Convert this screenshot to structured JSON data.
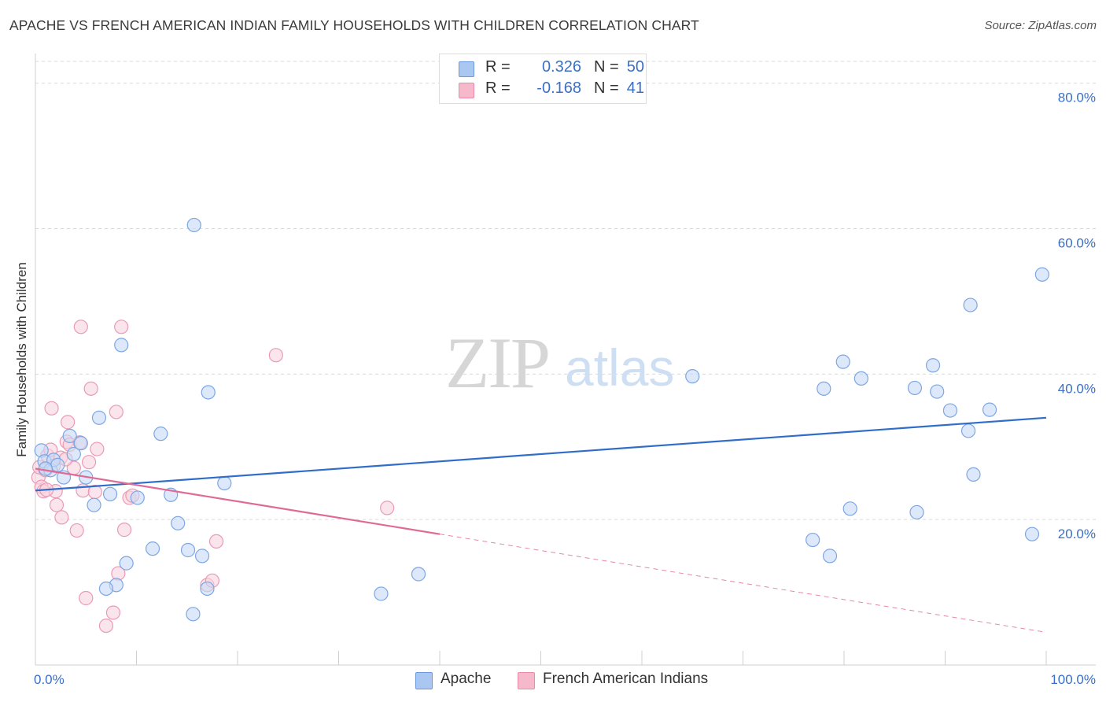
{
  "header": {
    "title": "APACHE VS FRENCH AMERICAN INDIAN FAMILY HOUSEHOLDS WITH CHILDREN CORRELATION CHART",
    "source": "Source: ZipAtlas.com"
  },
  "watermark": {
    "zip": "ZIP",
    "atlas": "atlas"
  },
  "legend": {
    "r_label": "R =",
    "n_label": "N =",
    "series": [
      {
        "name": "Apache",
        "r": "0.326",
        "n": "50",
        "fill": "#a9c7f0",
        "stroke": "#6b98dd"
      },
      {
        "name": "French American Indians",
        "r": "-0.168",
        "n": "41",
        "fill": "#f6b9cc",
        "stroke": "#e98aa8"
      }
    ]
  },
  "colors": {
    "apache_point_fill": "#c7dbf6",
    "apache_point_stroke": "#7da6e3",
    "apache_line": "#2f6dc9",
    "french_point_fill": "#f9d3df",
    "french_point_stroke": "#eb9ab5",
    "french_line": "#e06a96",
    "axis_label": "#3a6fc6",
    "grid": "#d9d9d9"
  },
  "chart_data": {
    "type": "scatter",
    "title": "APACHE VS FRENCH AMERICAN INDIAN FAMILY HOUSEHOLDS WITH CHILDREN CORRELATION CHART",
    "xlabel": "",
    "ylabel": "Family Households with Children",
    "xlim": [
      0,
      100
    ],
    "ylim": [
      0,
      83
    ],
    "x_tick_labels": [
      {
        "value": 0,
        "label": "0.0%"
      },
      {
        "value": 100,
        "label": "100.0%"
      }
    ],
    "x_minor_ticks": [
      10,
      20,
      30,
      40,
      50,
      60,
      70,
      80,
      90,
      100
    ],
    "y_ticks": [
      {
        "value": 20,
        "label": "20.0%"
      },
      {
        "value": 40,
        "label": "40.0%"
      },
      {
        "value": 60,
        "label": "60.0%"
      },
      {
        "value": 80,
        "label": "80.0%"
      }
    ],
    "grid": true,
    "legend_position": "top-center",
    "series": [
      {
        "name": "Apache",
        "points": [
          [
            0.6,
            29.5
          ],
          [
            0.9,
            28.0
          ],
          [
            1.5,
            26.8
          ],
          [
            1.8,
            28.2
          ],
          [
            2.2,
            27.5
          ],
          [
            2.8,
            25.8
          ],
          [
            3.4,
            31.5
          ],
          [
            3.8,
            29.0
          ],
          [
            4.5,
            30.5
          ],
          [
            5.0,
            25.8
          ],
          [
            5.8,
            22.0
          ],
          [
            6.3,
            34.0
          ],
          [
            7.4,
            23.5
          ],
          [
            8.0,
            11.0
          ],
          [
            8.5,
            44.0
          ],
          [
            9.0,
            14.0
          ],
          [
            7.0,
            10.5
          ],
          [
            10.1,
            23.0
          ],
          [
            11.6,
            16.0
          ],
          [
            12.4,
            31.8
          ],
          [
            13.4,
            23.4
          ],
          [
            14.1,
            19.5
          ],
          [
            15.1,
            15.8
          ],
          [
            15.6,
            7.0
          ],
          [
            15.7,
            60.5
          ],
          [
            16.5,
            15.0
          ],
          [
            17.0,
            10.5
          ],
          [
            17.1,
            37.5
          ],
          [
            18.7,
            25.0
          ],
          [
            34.2,
            9.8
          ],
          [
            37.9,
            12.5
          ],
          [
            65.0,
            39.7
          ],
          [
            76.9,
            17.2
          ],
          [
            78.0,
            38.0
          ],
          [
            78.6,
            15.0
          ],
          [
            79.9,
            41.7
          ],
          [
            80.6,
            21.5
          ],
          [
            81.7,
            39.4
          ],
          [
            87.0,
            38.1
          ],
          [
            87.2,
            21.0
          ],
          [
            88.8,
            41.2
          ],
          [
            89.2,
            37.6
          ],
          [
            90.5,
            35.0
          ],
          [
            92.3,
            32.2
          ],
          [
            92.5,
            49.5
          ],
          [
            92.8,
            26.2
          ],
          [
            94.4,
            35.1
          ],
          [
            98.6,
            18.0
          ],
          [
            99.6,
            53.7
          ],
          [
            1.0,
            27.0
          ]
        ],
        "trend": {
          "x": [
            0,
            100
          ],
          "y": [
            24.0,
            34.0
          ]
        }
      },
      {
        "name": "French American Indians",
        "points": [
          [
            0.3,
            25.8
          ],
          [
            0.4,
            27.2
          ],
          [
            0.6,
            24.5
          ],
          [
            0.8,
            23.9
          ],
          [
            1.0,
            26.8
          ],
          [
            1.2,
            28.8
          ],
          [
            1.5,
            29.6
          ],
          [
            1.6,
            35.3
          ],
          [
            1.8,
            27.4
          ],
          [
            2.0,
            23.9
          ],
          [
            2.1,
            22.0
          ],
          [
            2.5,
            28.5
          ],
          [
            2.6,
            20.3
          ],
          [
            3.1,
            30.7
          ],
          [
            3.2,
            33.4
          ],
          [
            3.4,
            30.3
          ],
          [
            3.8,
            27.1
          ],
          [
            4.1,
            18.5
          ],
          [
            4.4,
            30.6
          ],
          [
            4.5,
            46.5
          ],
          [
            4.7,
            24.0
          ],
          [
            5.0,
            9.2
          ],
          [
            5.3,
            27.9
          ],
          [
            5.5,
            38.0
          ],
          [
            5.9,
            23.8
          ],
          [
            6.1,
            29.7
          ],
          [
            7.0,
            5.4
          ],
          [
            7.7,
            7.2
          ],
          [
            8.0,
            34.8
          ],
          [
            8.2,
            12.6
          ],
          [
            8.5,
            46.5
          ],
          [
            8.8,
            18.6
          ],
          [
            9.3,
            23.0
          ],
          [
            9.6,
            23.3
          ],
          [
            17.0,
            11.0
          ],
          [
            17.5,
            11.6
          ],
          [
            17.9,
            17.0
          ],
          [
            23.8,
            42.6
          ],
          [
            34.8,
            21.6
          ],
          [
            1.1,
            24.1
          ],
          [
            3.0,
            28.3
          ]
        ],
        "trend_solid": {
          "x": [
            0,
            40
          ],
          "y": [
            27.0,
            18.0
          ]
        },
        "trend_dashed": {
          "x": [
            40,
            100
          ],
          "y": [
            18.0,
            4.5
          ]
        }
      }
    ]
  }
}
